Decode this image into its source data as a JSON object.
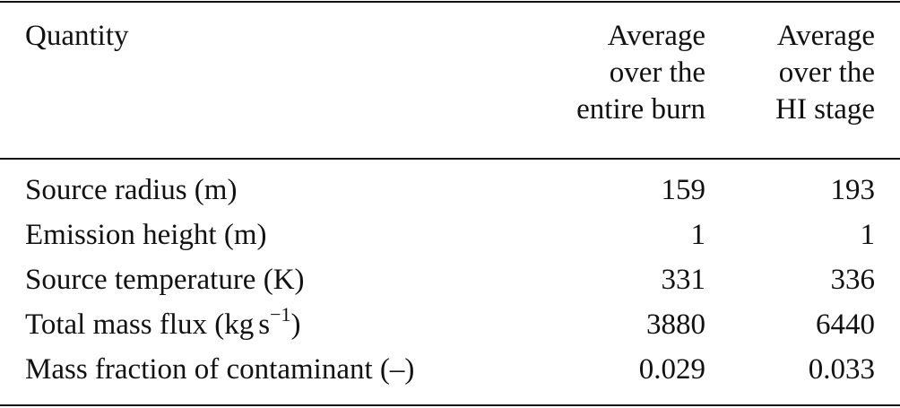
{
  "table": {
    "header": {
      "quantity": "Quantity",
      "col1": [
        "Average",
        "over the",
        "entire burn"
      ],
      "col2": [
        "Average",
        "over the",
        "HI stage"
      ]
    },
    "rows": [
      {
        "label": "Source radius (m)",
        "v1": "159",
        "v2": "193"
      },
      {
        "label": "Emission height (m)",
        "v1": "1",
        "v2": "1"
      },
      {
        "label": "Source temperature (K)",
        "v1": "331",
        "v2": "336"
      },
      {
        "label_main": "Total mass flux (kg",
        "label_unit": "s",
        "label_sup": "−1",
        "label_close": ")",
        "v1": "3880",
        "v2": "6440"
      },
      {
        "label": "Mass fraction of contaminant (–)",
        "v1": "0.029",
        "v2": "0.033"
      }
    ]
  }
}
